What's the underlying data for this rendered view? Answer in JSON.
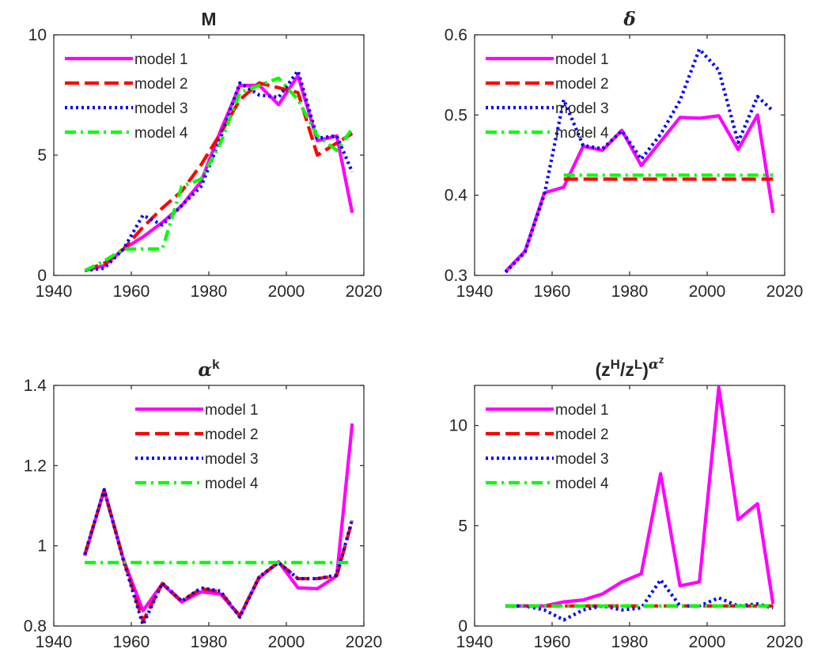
{
  "figure": {
    "series_styles": [
      {
        "key": "model1",
        "color": "#ff00ff",
        "dash": ""
      },
      {
        "key": "model2",
        "color": "#ff0000",
        "dash": "18,7"
      },
      {
        "key": "model3",
        "color": "#0000ff",
        "dash": "3,4"
      },
      {
        "key": "model4",
        "color": "#00ff00",
        "dash": "14,6,3,6"
      }
    ]
  },
  "chart_data": [
    {
      "type": "line",
      "title": "M",
      "title_parts": [
        {
          "t": "M",
          "s": "n",
          "f": "sans"
        }
      ],
      "xlim": [
        1940,
        2020
      ],
      "ylim": [
        0,
        10
      ],
      "xticks": [
        "1940",
        "1960",
        "1980",
        "2000",
        "2020"
      ],
      "yticks": [
        0,
        5,
        10
      ],
      "ytick_labels": [
        "0",
        "5",
        "10"
      ],
      "legend_position": "upper-left",
      "series": [
        {
          "name": "model 1",
          "x": [
            1948,
            1953,
            1958,
            1963,
            1968,
            1973,
            1978,
            1983,
            1988,
            1993,
            1998,
            2003,
            2008,
            2013,
            2017
          ],
          "y": [
            0.2,
            0.4,
            1.1,
            1.6,
            2.2,
            2.9,
            3.9,
            6.0,
            7.9,
            7.9,
            7.1,
            8.3,
            5.6,
            5.8,
            2.6
          ]
        },
        {
          "name": "model 2",
          "x": [
            1948,
            1953,
            1958,
            1963,
            1968,
            1973,
            1978,
            1983,
            1988,
            1993,
            1998,
            2003,
            2008,
            2013,
            2017
          ],
          "y": [
            0.2,
            0.5,
            1.1,
            2.0,
            2.8,
            3.5,
            4.6,
            5.9,
            7.3,
            8.0,
            7.8,
            7.6,
            5.0,
            5.5,
            5.9
          ]
        },
        {
          "name": "model 3",
          "x": [
            1948,
            1953,
            1958,
            1963,
            1968,
            1973,
            1978,
            1983,
            1988,
            1993,
            1998,
            2003,
            2008,
            2013,
            2017
          ],
          "y": [
            0.2,
            0.3,
            1.1,
            2.5,
            2.1,
            2.9,
            3.7,
            5.7,
            8.0,
            7.5,
            7.4,
            8.5,
            5.7,
            5.8,
            4.3
          ]
        },
        {
          "name": "model 4",
          "x": [
            1948,
            1953,
            1958,
            1963,
            1968,
            1973,
            1978,
            1983,
            1988,
            1993,
            1998,
            2003,
            2008,
            2013,
            2017
          ],
          "y": [
            0.2,
            0.6,
            1.1,
            1.1,
            1.1,
            3.7,
            4.0,
            5.5,
            7.6,
            7.9,
            8.2,
            7.3,
            5.8,
            5.2,
            6.1
          ]
        }
      ]
    },
    {
      "type": "line",
      "title": "δ",
      "title_parts": [
        {
          "t": "δ",
          "s": "n",
          "f": "serif-italic"
        }
      ],
      "xlim": [
        1940,
        2020
      ],
      "ylim": [
        0.3,
        0.6
      ],
      "xticks": [
        "1940",
        "1960",
        "1980",
        "2000",
        "2020"
      ],
      "yticks": [
        0.3,
        0.4,
        0.5,
        0.6
      ],
      "ytick_labels": [
        "0.3",
        "0.4",
        "0.5",
        "0.6"
      ],
      "legend_position": "upper-left",
      "series": [
        {
          "name": "model 1",
          "x": [
            1948,
            1953,
            1958,
            1963,
            1968,
            1973,
            1978,
            1983,
            1988,
            1993,
            1998,
            2003,
            2008,
            2013,
            2017
          ],
          "y": [
            0.305,
            0.33,
            0.403,
            0.41,
            0.461,
            0.456,
            0.481,
            0.437,
            0.467,
            0.497,
            0.496,
            0.499,
            0.457,
            0.5,
            0.378
          ]
        },
        {
          "name": "model 2",
          "x": [
            1963,
            2017
          ],
          "y": [
            0.42,
            0.42
          ]
        },
        {
          "name": "model 3",
          "x": [
            1948,
            1953,
            1958,
            1963,
            1968,
            1973,
            1978,
            1983,
            1988,
            1993,
            1998,
            2003,
            2008,
            2013,
            2017
          ],
          "y": [
            0.304,
            0.329,
            0.401,
            0.519,
            0.462,
            0.458,
            0.48,
            0.445,
            0.476,
            0.518,
            0.582,
            0.556,
            0.466,
            0.523,
            0.505
          ]
        },
        {
          "name": "model 4",
          "x": [
            1963,
            2017
          ],
          "y": [
            0.425,
            0.425
          ]
        }
      ]
    },
    {
      "type": "line",
      "title": "αk",
      "title_parts": [
        {
          "t": "α",
          "s": "n",
          "f": "serif-italic"
        },
        {
          "t": "k",
          "s": "sup",
          "f": "sans"
        }
      ],
      "xlim": [
        1940,
        2020
      ],
      "ylim": [
        0.8,
        1.4
      ],
      "xticks": [
        "1940",
        "1960",
        "1980",
        "2000",
        "2020"
      ],
      "yticks": [
        0.8,
        1.0,
        1.2,
        1.4
      ],
      "ytick_labels": [
        "0.8",
        "1",
        "1.2",
        "1.4"
      ],
      "legend_position": "upper-center",
      "series": [
        {
          "name": "model 1",
          "x": [
            1948,
            1953,
            1958,
            1963,
            1968,
            1973,
            1978,
            1983,
            1988,
            1993,
            1998,
            2003,
            2008,
            2013,
            2017
          ],
          "y": [
            0.975,
            1.14,
            0.965,
            0.838,
            0.905,
            0.86,
            0.885,
            0.88,
            0.825,
            0.92,
            0.96,
            0.895,
            0.893,
            0.925,
            1.305
          ]
        },
        {
          "name": "model 2",
          "x": [
            1948,
            1953,
            1958,
            1963,
            1968,
            1973,
            1978,
            1983,
            1988,
            1993,
            1998,
            2003,
            2008,
            2013,
            2017
          ],
          "y": [
            0.978,
            1.138,
            0.965,
            0.812,
            0.906,
            0.862,
            0.893,
            0.885,
            0.825,
            0.922,
            0.958,
            0.918,
            0.918,
            0.925,
            1.063
          ]
        },
        {
          "name": "model 3",
          "x": [
            1948,
            1953,
            1958,
            1963,
            1968,
            1973,
            1978,
            1983,
            1988,
            1993,
            1998,
            2003,
            2008,
            2013,
            2017
          ],
          "y": [
            0.978,
            1.14,
            0.962,
            0.803,
            0.907,
            0.862,
            0.895,
            0.887,
            0.822,
            0.923,
            0.958,
            0.918,
            0.918,
            0.927,
            1.066
          ]
        },
        {
          "name": "model 4",
          "x": [
            1948,
            2017
          ],
          "y": [
            0.958,
            0.958
          ]
        }
      ]
    },
    {
      "type": "line",
      "title": "(zH/zL)αz",
      "title_parts": [
        {
          "t": "(z",
          "s": "n",
          "f": "sans"
        },
        {
          "t": "H",
          "s": "sup",
          "f": "sans"
        },
        {
          "t": "/z",
          "s": "n",
          "f": "sans"
        },
        {
          "t": "L",
          "s": "sup",
          "f": "sans"
        },
        {
          "t": ")",
          "s": "n",
          "f": "sans"
        },
        {
          "t": "α",
          "s": "sup",
          "f": "serif-italic"
        },
        {
          "t": "z",
          "s": "supsup",
          "f": "sans"
        }
      ],
      "xlim": [
        1940,
        2020
      ],
      "ylim": [
        0,
        12
      ],
      "xticks": [
        "1940",
        "1960",
        "1980",
        "2000",
        "2020"
      ],
      "yticks": [
        0,
        5,
        10
      ],
      "ytick_labels": [
        "0",
        "5",
        "10"
      ],
      "legend_position": "upper-left",
      "series": [
        {
          "name": "model 1",
          "x": [
            1948,
            1953,
            1958,
            1963,
            1968,
            1973,
            1978,
            1983,
            1988,
            1993,
            1998,
            2003,
            2008,
            2013,
            2017
          ],
          "y": [
            1.0,
            1.0,
            1.0,
            1.2,
            1.3,
            1.6,
            2.2,
            2.6,
            7.6,
            2.0,
            2.2,
            11.9,
            5.3,
            6.1,
            1.1
          ]
        },
        {
          "name": "model 2",
          "x": [
            1948,
            2017
          ],
          "y": [
            1.0,
            1.0
          ]
        },
        {
          "name": "model 3",
          "x": [
            1948,
            1953,
            1958,
            1963,
            1968,
            1973,
            1978,
            1983,
            1988,
            1993,
            1998,
            2003,
            2008,
            2013,
            2017
          ],
          "y": [
            1.0,
            1.0,
            0.8,
            0.3,
            0.8,
            1.0,
            0.8,
            0.9,
            2.3,
            1.0,
            1.0,
            1.4,
            1.0,
            1.1,
            0.9
          ]
        },
        {
          "name": "model 4",
          "x": [
            1948,
            2017
          ],
          "y": [
            1.0,
            1.0
          ]
        }
      ]
    }
  ]
}
